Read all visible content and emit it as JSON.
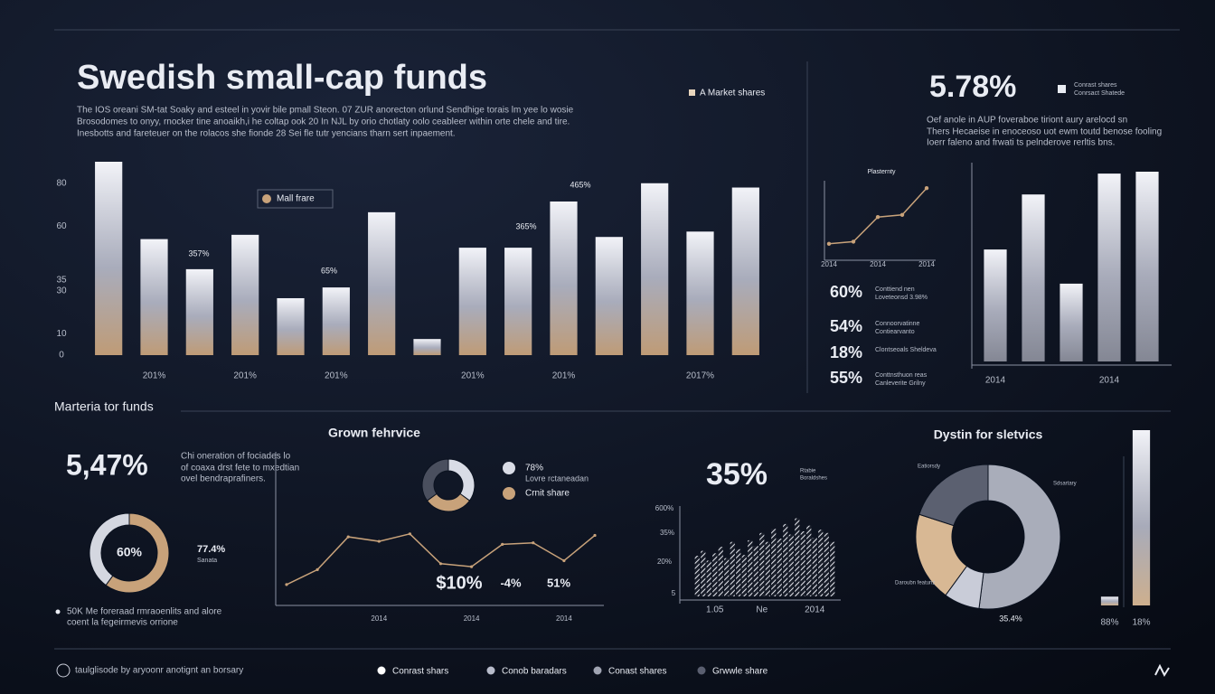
{
  "header": {
    "title": "Swedish small-cap funds",
    "paragraph": [
      "The IOS oreani SM-tat Soaky and esteel in yovir bile pmall Steon. 07 ZUR anorecton orlund Sendhige torais lm yee lo wosie",
      "Brosodomes to onyy, rnocker tine anoaikh,i he coltap ook 20 In NJL by orio chotlaty oolo ceableer within orte chele and tire.",
      "Inesbotts and fareteuer on the rolacos she fionde 28 Sei fle tutr yencians tharn sert inpaement."
    ],
    "legend": "A Market shares"
  },
  "kpi_panel": {
    "value": "5.78%",
    "legend": [
      "Conrast shares",
      "Conrsact Shatede"
    ],
    "paragraph": [
      "Oef anole in AUP foveraboe tiriont aury arelocd sn",
      "Thers Hecaeise in enoceoso uot ewm toutd benose fooling",
      "Ioerr faleno and frwati ts pelnderove rerltis bns."
    ],
    "stats": [
      {
        "value": "60%",
        "lines": [
          "Conttiend nen",
          "Loveteonsd 3.98%"
        ]
      },
      {
        "value": "54%",
        "lines": [
          "Connoorvatinne",
          "Contiearvanto"
        ]
      },
      {
        "value": "18%",
        "lines": [
          "Clontseoals Sheldeva"
        ]
      },
      {
        "value": "55%",
        "lines": [
          "Conttnsthuon reas",
          "Canleverite Grilny"
        ]
      }
    ]
  },
  "section": {
    "title": "Marteria tor funds"
  },
  "bottom_left": {
    "value": "5,47%",
    "paragraph": [
      "Chi oneration of fociades lo",
      "of coaxa drst fete to mxedtian",
      "ovel bendraprafiners."
    ],
    "side_value": "77.4%",
    "side_label": "Sanata",
    "note": [
      "50K Me foreraad rmraoenlits and alore",
      "coent la fegeirmevis orrione"
    ]
  },
  "footer": {
    "credit": "taulglisode by aryoonr anotignt an borsary",
    "legend": [
      {
        "name": "Conrast shars",
        "color": "#ffffff"
      },
      {
        "name": "Conob baradars",
        "color": "#b8bccb"
      },
      {
        "name": "Conast shares",
        "color": "#a0a4b2"
      },
      {
        "name": "Grwwle share",
        "color": "#5a5f70"
      }
    ]
  },
  "chart_data": [
    {
      "type": "bar",
      "categories": [
        null,
        "201%",
        null,
        "201%",
        null,
        "201%",
        null,
        null,
        "201%",
        null,
        "201%",
        null,
        null,
        "2017%",
        null
      ],
      "series": [
        {
          "name": "Mall frare",
          "color": "#c8a27a",
          "values": [
            90,
            54,
            40,
            56,
            26.5,
            31.5,
            66.5,
            7.5,
            50,
            50,
            71.5,
            55,
            80,
            57.5,
            78
          ]
        }
      ],
      "ylim": [
        0,
        90
      ],
      "yticks": [
        0,
        10,
        30,
        35,
        60,
        80
      ],
      "annotations": [
        "357%",
        "65%",
        "365%",
        "465%"
      ]
    },
    {
      "type": "line",
      "title": "Plasternty",
      "categories": [
        "2014",
        null,
        "2014",
        null,
        "2014"
      ],
      "values": [
        19,
        22,
        56,
        59,
        96
      ],
      "color": "#c8a27a",
      "ylim": [
        0,
        100
      ]
    },
    {
      "type": "bar",
      "categories": [
        "2014",
        null,
        null,
        "2014",
        null
      ],
      "series": [
        {
          "color": "#8a8d9a",
          "values": [
            59,
            88,
            41,
            99,
            100
          ]
        }
      ],
      "ylim": [
        0,
        100
      ]
    },
    {
      "type": "line",
      "title": "Grown fehrvice",
      "categories": [
        null,
        null,
        null,
        "2014",
        null,
        null,
        "2014",
        null,
        null,
        "2014",
        null
      ],
      "values": [
        14,
        24,
        46,
        43,
        48,
        28,
        26,
        41,
        42,
        30,
        47
      ],
      "color": "#c8a27a",
      "ylim": [
        0,
        100
      ],
      "annotations": [
        "$10%",
        "-4%",
        "51%"
      ]
    },
    {
      "type": "bar",
      "pattern": "hatch",
      "title": "35%",
      "subtitle": [
        "Rtabie",
        "Boraldshes"
      ],
      "axis_labels": [
        "600%",
        "35%",
        "20%",
        "5"
      ],
      "categories": [
        null,
        null,
        null,
        "1.05",
        null,
        null,
        null,
        null,
        null,
        null,
        null,
        "Ne",
        null,
        null,
        null,
        null,
        null,
        null,
        null,
        null,
        "2014",
        null,
        null,
        null
      ],
      "series": [
        {
          "color": "#d9dce6",
          "values": [
            50,
            56,
            44,
            53,
            61,
            47,
            67,
            58,
            51,
            69,
            62,
            78,
            67,
            83,
            71,
            89,
            76,
            96,
            80,
            87,
            72,
            82,
            78,
            67
          ]
        }
      ],
      "ylim": [
        0,
        100
      ]
    },
    {
      "type": "pie",
      "values": [
        60,
        40
      ],
      "value_labels": [
        "60%",
        null
      ],
      "colors": [
        "#c8a27a",
        "#d4d7e0"
      ]
    },
    {
      "type": "pie",
      "categories": [
        "78%",
        "Crnit share",
        null
      ],
      "note": "Lovre rctaneadan",
      "values": [
        35,
        30,
        35
      ],
      "colors": [
        "#d9dce6",
        "#c8a27a",
        "#4a4f5e"
      ]
    },
    {
      "type": "pie",
      "title": "Dystin for sletvics",
      "categories": [
        "Sdsartary",
        null,
        "Daroubn featunz",
        "Eatiorsdy"
      ],
      "values": [
        52,
        8,
        20,
        20
      ],
      "colors": [
        "#a9adba",
        "#c9ccd8",
        "#d8b894",
        "#5b6070"
      ],
      "annotations": [
        "35.4%"
      ]
    },
    {
      "type": "bar",
      "categories": [
        "88%",
        "18%"
      ],
      "series": [
        {
          "color": "#d8b894",
          "values": [
            5,
            100
          ]
        }
      ],
      "ylim": [
        0,
        100
      ]
    }
  ]
}
